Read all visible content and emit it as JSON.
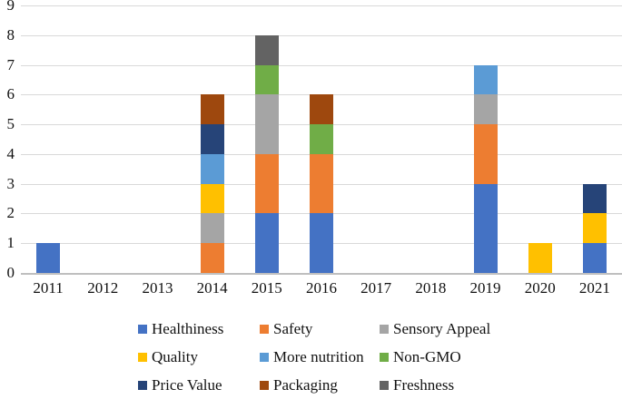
{
  "chart_data": {
    "type": "bar",
    "subtype": "stacked-vertical",
    "title": "",
    "xlabel": "",
    "ylabel": "",
    "categories": [
      "2011",
      "2012",
      "2013",
      "2014",
      "2015",
      "2016",
      "2017",
      "2018",
      "2019",
      "2020",
      "2021"
    ],
    "yticks": [
      "0",
      "1",
      "2",
      "3",
      "4",
      "5",
      "6",
      "7",
      "8",
      "9"
    ],
    "ylim": [
      0,
      9
    ],
    "grid": true,
    "gridline_color": "#d9d9d9",
    "axis_line_color": "#bfbfbf",
    "legend_position": "bottom",
    "legend_columns": 3,
    "series": [
      {
        "name": "Healthiness",
        "color": "#4472c4",
        "values": [
          1,
          0,
          0,
          0,
          2,
          2,
          0,
          0,
          3,
          0,
          1
        ]
      },
      {
        "name": "Safety",
        "color": "#ed7d31",
        "values": [
          0,
          0,
          0,
          1,
          2,
          2,
          0,
          0,
          2,
          0,
          0
        ]
      },
      {
        "name": "Sensory Appeal",
        "color": "#a5a5a5",
        "values": [
          0,
          0,
          0,
          1,
          2,
          0,
          0,
          0,
          1,
          0,
          0
        ]
      },
      {
        "name": "Quality",
        "color": "#ffc000",
        "values": [
          0,
          0,
          0,
          1,
          0,
          0,
          0,
          0,
          0,
          1,
          1
        ]
      },
      {
        "name": "More nutrition",
        "color": "#5b9bd5",
        "values": [
          0,
          0,
          0,
          1,
          0,
          0,
          0,
          0,
          1,
          0,
          0
        ]
      },
      {
        "name": "Non-GMO",
        "color": "#70ad47",
        "values": [
          0,
          0,
          0,
          0,
          1,
          1,
          0,
          0,
          0,
          0,
          0
        ]
      },
      {
        "name": "Price Value",
        "color": "#264478",
        "values": [
          0,
          0,
          0,
          1,
          0,
          0,
          0,
          0,
          0,
          0,
          1
        ]
      },
      {
        "name": "Packaging",
        "color": "#9e480e",
        "values": [
          0,
          0,
          0,
          1,
          0,
          1,
          0,
          0,
          0,
          0,
          0
        ]
      },
      {
        "name": "Freshness",
        "color": "#636363",
        "values": [
          0,
          0,
          0,
          0,
          1,
          0,
          0,
          0,
          0,
          0,
          0
        ]
      }
    ]
  }
}
